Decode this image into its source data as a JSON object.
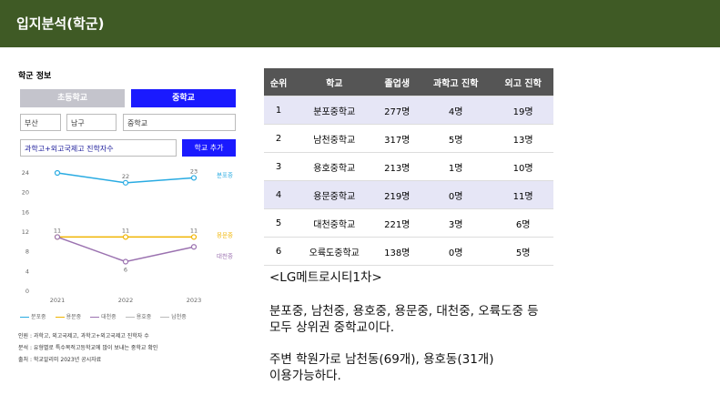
{
  "header": {
    "title": "입지분석(학군)"
  },
  "panel": {
    "title": "학군 정보",
    "tabs": [
      "초등학교",
      "중학교"
    ],
    "selects": [
      "부산",
      "남구",
      "중학교"
    ],
    "metric": "과학고+외고국제고 진학자수",
    "add_button": "학교 추가",
    "chart_data": {
      "type": "line",
      "categories": [
        "2021",
        "2022",
        "2023"
      ],
      "ylim": [
        0,
        24
      ],
      "yticks": [
        0,
        4,
        8,
        12,
        16,
        20,
        24
      ],
      "series": [
        {
          "name": "분포중",
          "color": "#29abe2",
          "values": [
            24,
            22,
            23
          ]
        },
        {
          "name": "용문중",
          "color": "#f0b400",
          "values": [
            11,
            11,
            11
          ]
        },
        {
          "name": "대천중",
          "color": "#9b72b0",
          "values": [
            11,
            6,
            9
          ]
        }
      ],
      "hidden_series": [
        "용호중",
        "남천중"
      ]
    },
    "notes": [
      "인원 : 과학고, 외고국제고, 과학고+외고국제고 진학자 수",
      "분석 : 유형별로 특수목적고등학교에 많이 보내는 중학교 확인",
      "출처 : 학교알리미 2023년 공시자료"
    ]
  },
  "table": {
    "header": [
      "순위",
      "학교",
      "졸업생",
      "과학고 진학",
      "외고 진학"
    ],
    "rows": [
      [
        "1",
        "분포중학교",
        "277명",
        "4명",
        "19명"
      ],
      [
        "2",
        "남천중학교",
        "317명",
        "5명",
        "13명"
      ],
      [
        "3",
        "용호중학교",
        "213명",
        "1명",
        "10명"
      ],
      [
        "4",
        "용문중학교",
        "219명",
        "0명",
        "11명"
      ],
      [
        "5",
        "대천중학교",
        "221명",
        "3명",
        "6명"
      ],
      [
        "6",
        "오륙도중학교",
        "138명",
        "0명",
        "5명"
      ]
    ]
  },
  "text": {
    "heading": "<LG메트로시티1차>",
    "para1": [
      "분포중, 남천중, 용호중, 용문중, 대천중, 오륙도중 등",
      "모두 상위권 중학교이다."
    ],
    "para2": [
      "주변 학원가로 남천동(69개), 용호동(31개)",
      "이용가능하다."
    ]
  }
}
